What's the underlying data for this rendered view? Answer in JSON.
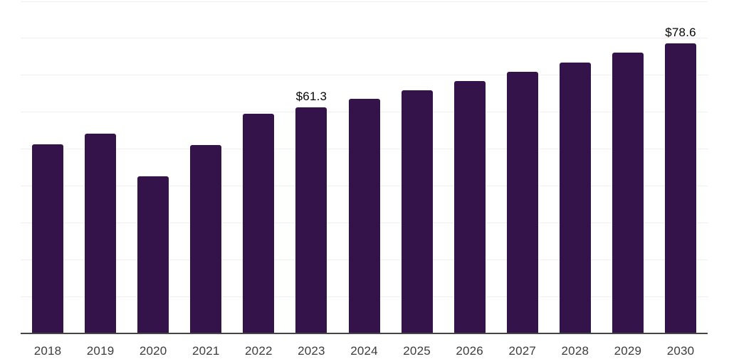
{
  "chart_data": {
    "type": "bar",
    "title": "",
    "xlabel": "",
    "ylabel": "",
    "categories": [
      "2018",
      "2019",
      "2020",
      "2021",
      "2022",
      "2023",
      "2024",
      "2025",
      "2026",
      "2027",
      "2028",
      "2029",
      "2030"
    ],
    "values": [
      51.2,
      54.1,
      42.6,
      51.0,
      59.4,
      61.3,
      63.6,
      65.9,
      68.3,
      70.8,
      73.3,
      76.0,
      78.6
    ],
    "data_labels": [
      {
        "category": "2023",
        "text": "$61.3"
      },
      {
        "category": "2030",
        "text": "$78.6"
      }
    ],
    "value_prefix": "$",
    "ylim": [
      0,
      90
    ],
    "grid_interval": 10,
    "grid": "horizontal",
    "y_axis_labels_visible": false,
    "legend": false,
    "bar_color": "#331349",
    "gridline_color": "#efeff1",
    "axis_line_color": "#454548",
    "x_label_color": "#3d3d3d",
    "data_label_color": "#050505",
    "background_color": "#ffffff"
  }
}
